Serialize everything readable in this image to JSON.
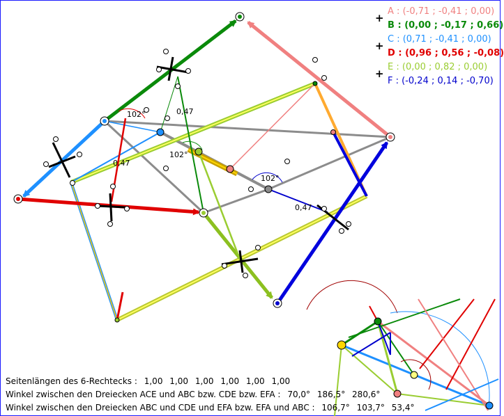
{
  "legend": {
    "points": [
      {
        "name": "A",
        "coords": "(-0,71 ; -0,41 ; 0,00)",
        "color": "#f08080"
      },
      {
        "name": "B",
        "coords": "(0,00 ; -0,17 ; 0,66)",
        "color": "#0a8a0a"
      },
      {
        "name": "C",
        "coords": "(0,71 ; -0,41 ; 0,00)",
        "color": "#1e90ff"
      },
      {
        "name": "D",
        "coords": "(0,96 ; 0,56 ; -0,08)",
        "color": "#e00000"
      },
      {
        "name": "E",
        "coords": "(0,00 ; 0,82 ; 0,00)",
        "color": "#9acd32"
      },
      {
        "name": "F",
        "coords": "(-0,24 ; 0,14 ; -0,70)",
        "color": "#0000cc"
      }
    ],
    "separator": " : ",
    "plus": "+"
  },
  "diagram": {
    "length_labels": [
      "0,47",
      "0,47",
      "0,47"
    ],
    "angle_labels": [
      "102°",
      "102°",
      "102°"
    ]
  },
  "footer": {
    "line1_label": "Seitenlängen des 6-Rechtecks :",
    "line1_values": [
      "1,00",
      "1,00",
      "1,00",
      "1,00",
      "1,00",
      "1,00"
    ],
    "line2_label": "Winkel zwischen den Dreiecken ACE und ABC bzw. CDE bzw. EFA :",
    "line2_values": [
      "70,0°",
      "186,5°",
      "280,6°"
    ],
    "line3_label": "Winkel zwischen den Dreiecken ABC und CDE und EFA bzw. EFA und ABC :",
    "line3_values": [
      "106,7°",
      "103,7°",
      "53,4°"
    ]
  }
}
